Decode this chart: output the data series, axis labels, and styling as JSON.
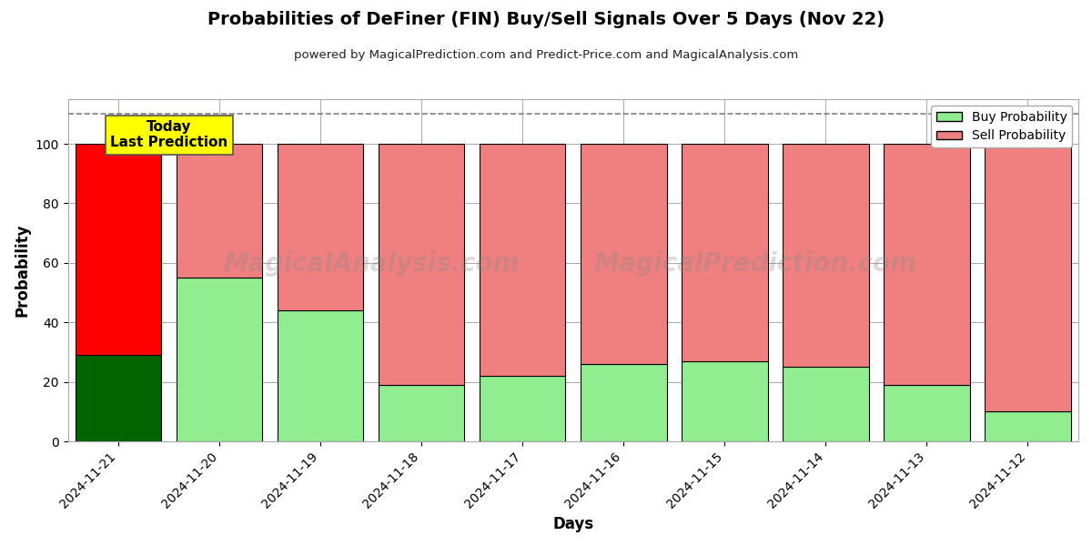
{
  "title": "Probabilities of DeFiner (FIN) Buy/Sell Signals Over 5 Days (Nov 22)",
  "subtitle": "powered by MagicalPrediction.com and Predict-Price.com and MagicalAnalysis.com",
  "xlabel": "Days",
  "ylabel": "Probability",
  "dates": [
    "2024-11-21",
    "2024-11-20",
    "2024-11-19",
    "2024-11-18",
    "2024-11-17",
    "2024-11-16",
    "2024-11-15",
    "2024-11-14",
    "2024-11-13",
    "2024-11-12"
  ],
  "buy_values": [
    29,
    55,
    44,
    19,
    22,
    26,
    27,
    25,
    19,
    10
  ],
  "sell_values": [
    71,
    45,
    56,
    81,
    78,
    74,
    73,
    75,
    81,
    90
  ],
  "buy_color_today": "#006400",
  "sell_color_today": "#FF0000",
  "buy_color_normal": "#90EE90",
  "sell_color_normal": "#F08080",
  "bar_edge_color": "#000000",
  "bar_edge_width": 0.8,
  "today_label_bg": "#FFFF00",
  "today_label_text": "Today\nLast Prediction",
  "dashed_line_y": 110,
  "ylim": [
    0,
    115
  ],
  "yticks": [
    0,
    20,
    40,
    60,
    80,
    100
  ],
  "grid_color": "#aaaaaa",
  "legend_buy": "Buy Probability",
  "legend_sell": "Sell Probability",
  "background_color": "#ffffff",
  "fig_width": 12,
  "fig_height": 6
}
